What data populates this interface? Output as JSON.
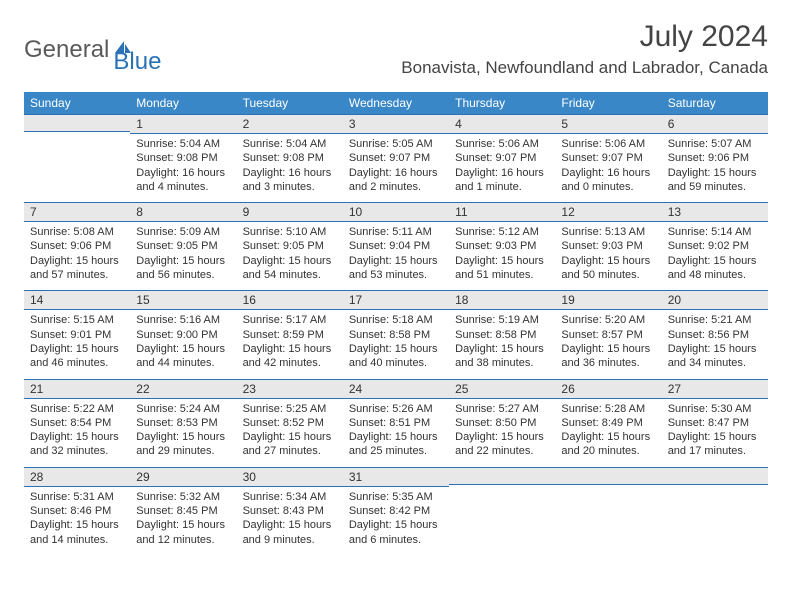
{
  "logo": {
    "text1": "General",
    "text2": "Blue"
  },
  "title": {
    "month_year": "July 2024",
    "location": "Bonavista, Newfoundland and Labrador, Canada"
  },
  "colors": {
    "header_bg": "#3a87c8",
    "header_text": "#ffffff",
    "band_bg": "#e8e8e8",
    "band_border": "#2a72b5",
    "body_text": "#333333",
    "logo_gray": "#5a5a5a",
    "logo_blue": "#2a72b5"
  },
  "day_headers": [
    "Sunday",
    "Monday",
    "Tuesday",
    "Wednesday",
    "Thursday",
    "Friday",
    "Saturday"
  ],
  "weeks": [
    [
      {
        "date": "",
        "sunrise": "",
        "sunset": "",
        "daylight": ""
      },
      {
        "date": "1",
        "sunrise": "Sunrise: 5:04 AM",
        "sunset": "Sunset: 9:08 PM",
        "daylight": "Daylight: 16 hours and 4 minutes."
      },
      {
        "date": "2",
        "sunrise": "Sunrise: 5:04 AM",
        "sunset": "Sunset: 9:08 PM",
        "daylight": "Daylight: 16 hours and 3 minutes."
      },
      {
        "date": "3",
        "sunrise": "Sunrise: 5:05 AM",
        "sunset": "Sunset: 9:07 PM",
        "daylight": "Daylight: 16 hours and 2 minutes."
      },
      {
        "date": "4",
        "sunrise": "Sunrise: 5:06 AM",
        "sunset": "Sunset: 9:07 PM",
        "daylight": "Daylight: 16 hours and 1 minute."
      },
      {
        "date": "5",
        "sunrise": "Sunrise: 5:06 AM",
        "sunset": "Sunset: 9:07 PM",
        "daylight": "Daylight: 16 hours and 0 minutes."
      },
      {
        "date": "6",
        "sunrise": "Sunrise: 5:07 AM",
        "sunset": "Sunset: 9:06 PM",
        "daylight": "Daylight: 15 hours and 59 minutes."
      }
    ],
    [
      {
        "date": "7",
        "sunrise": "Sunrise: 5:08 AM",
        "sunset": "Sunset: 9:06 PM",
        "daylight": "Daylight: 15 hours and 57 minutes."
      },
      {
        "date": "8",
        "sunrise": "Sunrise: 5:09 AM",
        "sunset": "Sunset: 9:05 PM",
        "daylight": "Daylight: 15 hours and 56 minutes."
      },
      {
        "date": "9",
        "sunrise": "Sunrise: 5:10 AM",
        "sunset": "Sunset: 9:05 PM",
        "daylight": "Daylight: 15 hours and 54 minutes."
      },
      {
        "date": "10",
        "sunrise": "Sunrise: 5:11 AM",
        "sunset": "Sunset: 9:04 PM",
        "daylight": "Daylight: 15 hours and 53 minutes."
      },
      {
        "date": "11",
        "sunrise": "Sunrise: 5:12 AM",
        "sunset": "Sunset: 9:03 PM",
        "daylight": "Daylight: 15 hours and 51 minutes."
      },
      {
        "date": "12",
        "sunrise": "Sunrise: 5:13 AM",
        "sunset": "Sunset: 9:03 PM",
        "daylight": "Daylight: 15 hours and 50 minutes."
      },
      {
        "date": "13",
        "sunrise": "Sunrise: 5:14 AM",
        "sunset": "Sunset: 9:02 PM",
        "daylight": "Daylight: 15 hours and 48 minutes."
      }
    ],
    [
      {
        "date": "14",
        "sunrise": "Sunrise: 5:15 AM",
        "sunset": "Sunset: 9:01 PM",
        "daylight": "Daylight: 15 hours and 46 minutes."
      },
      {
        "date": "15",
        "sunrise": "Sunrise: 5:16 AM",
        "sunset": "Sunset: 9:00 PM",
        "daylight": "Daylight: 15 hours and 44 minutes."
      },
      {
        "date": "16",
        "sunrise": "Sunrise: 5:17 AM",
        "sunset": "Sunset: 8:59 PM",
        "daylight": "Daylight: 15 hours and 42 minutes."
      },
      {
        "date": "17",
        "sunrise": "Sunrise: 5:18 AM",
        "sunset": "Sunset: 8:58 PM",
        "daylight": "Daylight: 15 hours and 40 minutes."
      },
      {
        "date": "18",
        "sunrise": "Sunrise: 5:19 AM",
        "sunset": "Sunset: 8:58 PM",
        "daylight": "Daylight: 15 hours and 38 minutes."
      },
      {
        "date": "19",
        "sunrise": "Sunrise: 5:20 AM",
        "sunset": "Sunset: 8:57 PM",
        "daylight": "Daylight: 15 hours and 36 minutes."
      },
      {
        "date": "20",
        "sunrise": "Sunrise: 5:21 AM",
        "sunset": "Sunset: 8:56 PM",
        "daylight": "Daylight: 15 hours and 34 minutes."
      }
    ],
    [
      {
        "date": "21",
        "sunrise": "Sunrise: 5:22 AM",
        "sunset": "Sunset: 8:54 PM",
        "daylight": "Daylight: 15 hours and 32 minutes."
      },
      {
        "date": "22",
        "sunrise": "Sunrise: 5:24 AM",
        "sunset": "Sunset: 8:53 PM",
        "daylight": "Daylight: 15 hours and 29 minutes."
      },
      {
        "date": "23",
        "sunrise": "Sunrise: 5:25 AM",
        "sunset": "Sunset: 8:52 PM",
        "daylight": "Daylight: 15 hours and 27 minutes."
      },
      {
        "date": "24",
        "sunrise": "Sunrise: 5:26 AM",
        "sunset": "Sunset: 8:51 PM",
        "daylight": "Daylight: 15 hours and 25 minutes."
      },
      {
        "date": "25",
        "sunrise": "Sunrise: 5:27 AM",
        "sunset": "Sunset: 8:50 PM",
        "daylight": "Daylight: 15 hours and 22 minutes."
      },
      {
        "date": "26",
        "sunrise": "Sunrise: 5:28 AM",
        "sunset": "Sunset: 8:49 PM",
        "daylight": "Daylight: 15 hours and 20 minutes."
      },
      {
        "date": "27",
        "sunrise": "Sunrise: 5:30 AM",
        "sunset": "Sunset: 8:47 PM",
        "daylight": "Daylight: 15 hours and 17 minutes."
      }
    ],
    [
      {
        "date": "28",
        "sunrise": "Sunrise: 5:31 AM",
        "sunset": "Sunset: 8:46 PM",
        "daylight": "Daylight: 15 hours and 14 minutes."
      },
      {
        "date": "29",
        "sunrise": "Sunrise: 5:32 AM",
        "sunset": "Sunset: 8:45 PM",
        "daylight": "Daylight: 15 hours and 12 minutes."
      },
      {
        "date": "30",
        "sunrise": "Sunrise: 5:34 AM",
        "sunset": "Sunset: 8:43 PM",
        "daylight": "Daylight: 15 hours and 9 minutes."
      },
      {
        "date": "31",
        "sunrise": "Sunrise: 5:35 AM",
        "sunset": "Sunset: 8:42 PM",
        "daylight": "Daylight: 15 hours and 6 minutes."
      },
      {
        "date": "",
        "sunrise": "",
        "sunset": "",
        "daylight": ""
      },
      {
        "date": "",
        "sunrise": "",
        "sunset": "",
        "daylight": ""
      },
      {
        "date": "",
        "sunrise": "",
        "sunset": "",
        "daylight": ""
      }
    ]
  ]
}
